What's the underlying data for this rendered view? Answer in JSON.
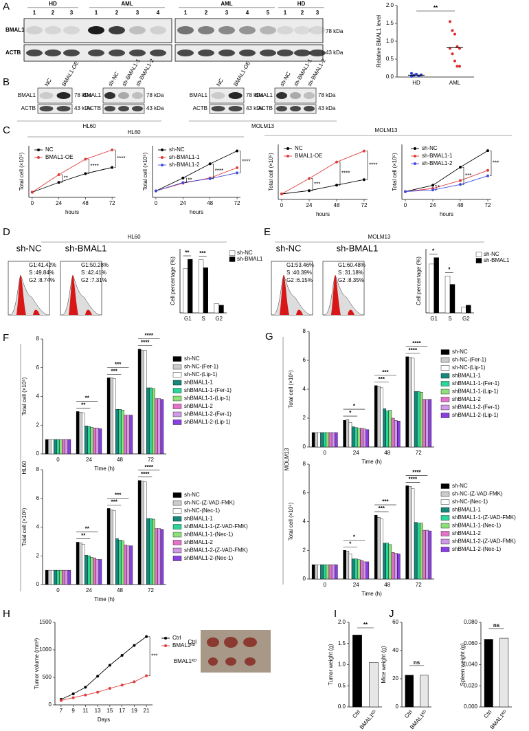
{
  "panel_labels": [
    "A",
    "B",
    "C",
    "D",
    "E",
    "F",
    "G",
    "H",
    "I",
    "J"
  ],
  "blot_A": {
    "groups": [
      "HD",
      "AML",
      "AML",
      "HD"
    ],
    "lanes": [
      [
        "1",
        "2",
        "3"
      ],
      [
        "1",
        "2",
        "3",
        "4"
      ],
      [
        "1",
        "2",
        "3",
        "4",
        "5"
      ],
      [
        "1",
        "2",
        "3"
      ]
    ],
    "rows": [
      "BMAL1",
      "ACTB"
    ],
    "sizes": [
      "78 kDa",
      "43 kDa"
    ]
  },
  "blot_B": {
    "blots": [
      {
        "lanes": [
          "NC",
          "BMAL1-OE"
        ]
      },
      {
        "lanes": [
          "sh-NC",
          "sh-BMAL1-1",
          "sh-BMAL1-2"
        ]
      },
      {
        "lanes": [
          "NC",
          "BMAL1-OE"
        ]
      },
      {
        "lanes": [
          "sh-NC",
          "sh-BMAL1-1",
          "sh-BMAL1-2"
        ]
      }
    ],
    "rows": [
      "BMAL1",
      "ACTB"
    ],
    "sizes": [
      "78 kDa",
      "43 kDa"
    ],
    "cell_lines": [
      "HL60",
      "MOLM13"
    ]
  },
  "section_labels": {
    "C": [
      "HL60",
      "MOLM13"
    ],
    "D": "HL60",
    "E": "MOLM13",
    "F": "HL60",
    "G": "MOLM13"
  },
  "flow": {
    "D": [
      {
        "title": "sh-NC",
        "stats": [
          "G1:41.42%",
          "S :49.84%",
          "G2 :8.74%"
        ]
      },
      {
        "title": "sh-BMAL1",
        "stats": [
          "G1:50.28%",
          "S :42.41%",
          "G2 :7.31%"
        ]
      }
    ],
    "E": [
      {
        "title": "sh-NC",
        "stats": [
          "G1:53.46%",
          "S :40.39%",
          "G2 :6.15%"
        ]
      },
      {
        "title": "sh-BMAL1",
        "stats": [
          "G1:60.48%",
          "S :31.18%",
          "G2 :8.35%"
        ]
      }
    ]
  },
  "photo": {
    "labels": [
      "Ctrl",
      "BMAL1ᴷᴰ"
    ]
  },
  "chart_data": [
    {
      "type": "dot",
      "ylabel": "Relative BMAL1 level",
      "categories": [
        "HD",
        "AML"
      ],
      "values": [
        [
          0.02,
          0.05,
          0.08,
          0.03,
          0.06,
          0.1
        ],
        [
          1.55,
          1.3,
          1.2,
          0.85,
          0.8,
          0.8,
          0.65,
          0.45,
          0.3,
          0.3
        ]
      ],
      "mean": [
        0.05,
        0.82
      ],
      "colors": [
        "#2b3fd1",
        "#e02a2a"
      ],
      "ylim": [
        0,
        2
      ],
      "yticks": [
        {
          "value": 0,
          "label": "0.0"
        },
        0.5,
        {
          "value": 1,
          "label": "1.0"
        },
        1.5,
        {
          "value": 2,
          "label": "2.0"
        }
      ],
      "annotations": [
        "**"
      ]
    },
    {
      "type": "line",
      "ylabel": "Total cell (×10⁵)",
      "xlabel": "hours",
      "x": [
        0,
        24,
        48,
        72
      ],
      "xlim": [
        -3,
        75
      ],
      "xticks": [
        0,
        24,
        48,
        72
      ],
      "ylim": [
        0,
        10
      ],
      "series": [
        {
          "name": "NC",
          "color": "#000000",
          "values": [
            1,
            2.9,
            4.6,
            5.8
          ]
        },
        {
          "name": "BMAL1-OE",
          "color": "#e03b3b",
          "values": [
            1,
            4.4,
            7.4,
            9.2
          ]
        }
      ],
      "annotations": [
        "**",
        "****",
        "****"
      ]
    },
    {
      "type": "line",
      "ylabel": "Total cell (×10⁵)",
      "xlabel": "hours",
      "x": [
        0,
        24,
        48,
        72
      ],
      "xlim": [
        -3,
        75
      ],
      "xticks": [
        0,
        24,
        48,
        72
      ],
      "ylim": [
        0,
        8
      ],
      "series": [
        {
          "name": "sh-NC",
          "color": "#000000",
          "values": [
            1,
            3,
            5.2,
            7.2
          ]
        },
        {
          "name": "sh-BMAL1-1",
          "color": "#e03b3b",
          "values": [
            1,
            2.2,
            3,
            4.6
          ]
        },
        {
          "name": "sh-BMAL1-2",
          "color": "#3b4ce0",
          "values": [
            1,
            2.3,
            2.9,
            3.8
          ]
        }
      ],
      "annotations": [
        "**",
        "****",
        "****"
      ]
    },
    {
      "type": "line",
      "ylabel": "Total cell (×10⁵)",
      "xlabel": "hours",
      "x": [
        0,
        24,
        48,
        72
      ],
      "xlim": [
        -3,
        75
      ],
      "xticks": [
        0,
        24,
        48,
        72
      ],
      "ylim": [
        0,
        10
      ],
      "series": [
        {
          "name": "NC",
          "color": "#000000",
          "values": [
            1,
            1.6,
            2.6,
            3.6
          ]
        },
        {
          "name": "BMAL1-OE",
          "color": "#e03b3b",
          "values": [
            1,
            3.8,
            6.8,
            8.8
          ]
        }
      ],
      "annotations": [
        "***",
        "****",
        "****"
      ]
    },
    {
      "type": "line",
      "ylabel": "Total cell (×10⁵)",
      "xlabel": "hours",
      "x": [
        0,
        24,
        48,
        72
      ],
      "xlim": [
        -3,
        75
      ],
      "xticks": [
        0,
        24,
        48,
        72
      ],
      "ylim": [
        0,
        7
      ],
      "series": [
        {
          "name": "sh-NC",
          "color": "#000000",
          "values": [
            1,
            1.8,
            4.1,
            6.2
          ]
        },
        {
          "name": "sh-BMAL1-1",
          "color": "#e03b3b",
          "values": [
            1,
            1.4,
            2.4,
            3.7
          ]
        },
        {
          "name": "sh-BMAL1-2",
          "color": "#3b4ce0",
          "values": [
            1,
            1.2,
            1.9,
            3.0
          ]
        }
      ],
      "annotations": [
        "*",
        "***",
        "***"
      ]
    },
    {
      "type": "bar",
      "ylabel": "Cell percentage (%)",
      "categories": [
        "G1",
        "S",
        "G2"
      ],
      "ylim": [
        0,
        60
      ],
      "series": [
        {
          "name": "sh-NC",
          "color": "#ffffff",
          "values": [
            41.4,
            49.8,
            8.7
          ]
        },
        {
          "name": "sh-BMAL1",
          "color": "#000000",
          "values": [
            50.3,
            42.4,
            7.3
          ]
        }
      ],
      "annotations": [
        "**",
        "***"
      ]
    },
    {
      "type": "bar",
      "ylabel": "Cell percentage (%)",
      "categories": [
        "G1",
        "S",
        "G2"
      ],
      "ylim": [
        0,
        70
      ],
      "series": [
        {
          "name": "sh-NC",
          "color": "#ffffff",
          "values": [
            53.5,
            40.4,
            6.2
          ]
        },
        {
          "name": "sh-BMAL1",
          "color": "#000000",
          "values": [
            60.5,
            31.2,
            8.4
          ]
        }
      ],
      "annotations": [
        "*",
        "*"
      ]
    },
    {
      "type": "bar",
      "ylabel": "Total cell (×10⁵)",
      "xlabel": "Time (h)",
      "categories": [
        "0",
        "24",
        "48",
        "72"
      ],
      "ylim": [
        0,
        8
      ],
      "yticks": [
        0,
        2,
        4,
        6,
        8
      ],
      "series": [
        {
          "name": "sh-NC",
          "color": "#000000",
          "values": [
            1,
            2.95,
            5.3,
            7.3
          ]
        },
        {
          "name": "sh-NC-(Fer-1)",
          "color": "#cccccc",
          "values": [
            1,
            2.9,
            5.3,
            7.2
          ]
        },
        {
          "name": "sh-NC-(Lip-1)",
          "color": "#ffffff",
          "values": [
            1,
            2.85,
            5.25,
            7.2
          ]
        },
        {
          "name": "shBMAL1-1",
          "color": "#16877a",
          "values": [
            1,
            1.95,
            3.1,
            4.6
          ]
        },
        {
          "name": "shBMAL1-1-(Fer-1)",
          "color": "#2ad49a",
          "values": [
            1,
            1.9,
            3.1,
            4.6
          ]
        },
        {
          "name": "shBMAL1-1-(Lip-1)",
          "color": "#8fe07a",
          "values": [
            1,
            1.85,
            3.05,
            4.55
          ]
        },
        {
          "name": "shBMAL1-2",
          "color": "#e472c9",
          "values": [
            1,
            1.8,
            2.7,
            3.85
          ]
        },
        {
          "name": "shBMAL1-2-(Fer-1)",
          "color": "#d19ae8",
          "values": [
            1,
            1.8,
            2.7,
            3.85
          ]
        },
        {
          "name": "shBMAL1-2-(Lip-1)",
          "color": "#8a3fe0",
          "values": [
            1,
            1.75,
            2.7,
            3.8
          ]
        }
      ],
      "annotations": [
        "**",
        "**",
        "***",
        "***",
        "****",
        "****"
      ]
    },
    {
      "type": "bar",
      "ylabel": "Total cell (×10⁵)",
      "xlabel": "Time (h)",
      "categories": [
        "0",
        "24",
        "48",
        "72"
      ],
      "ylim": [
        0,
        8
      ],
      "yticks": [
        0,
        2,
        4,
        6,
        8
      ],
      "series": [
        {
          "name": "sh-NC",
          "color": "#000000",
          "values": [
            1,
            2.95,
            5.3,
            7.25
          ]
        },
        {
          "name": "sh-NC-(Z-VAD-FMK)",
          "color": "#cccccc",
          "values": [
            1,
            2.9,
            5.2,
            7.2
          ]
        },
        {
          "name": "sh-NC-(Nec-1)",
          "color": "#ffffff",
          "values": [
            1,
            2.8,
            5.15,
            7.15
          ]
        },
        {
          "name": "shBMAL1-1",
          "color": "#16877a",
          "values": [
            1,
            2.05,
            3.2,
            4.6
          ]
        },
        {
          "name": "shBMAL1-1-(Z-VAD-FMK)",
          "color": "#2ad49a",
          "values": [
            1,
            2.0,
            3.1,
            4.6
          ]
        },
        {
          "name": "shBMAL1-1-(Nec-1)",
          "color": "#8fe07a",
          "values": [
            1,
            1.9,
            3.05,
            4.55
          ]
        },
        {
          "name": "shBMAL1-2",
          "color": "#e472c9",
          "values": [
            1,
            1.85,
            2.75,
            3.9
          ]
        },
        {
          "name": "shBMAL1-2-(Z-VAD-FMK)",
          "color": "#d19ae8",
          "values": [
            1,
            1.75,
            2.7,
            3.9
          ]
        },
        {
          "name": "shBMAL1-2-(Nec-1)",
          "color": "#8a3fe0",
          "values": [
            1,
            1.75,
            2.7,
            3.85
          ]
        }
      ],
      "annotations": [
        "**",
        "**",
        "***",
        "***",
        "****",
        "****"
      ]
    },
    {
      "type": "bar",
      "ylabel": "Total cell (×10⁵)",
      "xlabel": "Time (h)",
      "categories": [
        "0",
        "24",
        "48",
        "72"
      ],
      "ylim": [
        0,
        8
      ],
      "yticks": [
        0,
        2,
        4,
        6,
        8
      ],
      "series": [
        {
          "name": "sh-NC",
          "color": "#000000",
          "values": [
            1,
            1.85,
            4.25,
            6.25
          ]
        },
        {
          "name": "sh-NC-(Fer-1)",
          "color": "#cccccc",
          "values": [
            1,
            1.9,
            4.2,
            6.2
          ]
        },
        {
          "name": "sh-NC-(Lip-1)",
          "color": "#ffffff",
          "values": [
            1,
            1.7,
            4.1,
            6.15
          ]
        },
        {
          "name": "shBMAL1-1",
          "color": "#16877a",
          "values": [
            1,
            1.4,
            2.65,
            3.85
          ]
        },
        {
          "name": "shBMAL1-1-(Fer-1)",
          "color": "#2ad49a",
          "values": [
            1,
            1.35,
            2.5,
            3.85
          ]
        },
        {
          "name": "shBMAL1-1-(Lip-1)",
          "color": "#8fe07a",
          "values": [
            1,
            1.3,
            2.55,
            3.8
          ]
        },
        {
          "name": "shBMAL1-2",
          "color": "#e472c9",
          "values": [
            1,
            1.3,
            2.0,
            3.3
          ]
        },
        {
          "name": "shBMAL1-2-(Fer-1)",
          "color": "#d19ae8",
          "values": [
            1,
            1.25,
            1.85,
            3.3
          ]
        },
        {
          "name": "shBMAL1-2-(Lip-1)",
          "color": "#8a3fe0",
          "values": [
            1,
            1.2,
            1.8,
            3.3
          ]
        }
      ],
      "annotations": [
        "*",
        "*",
        "***",
        "***",
        "****",
        "****"
      ]
    },
    {
      "type": "bar",
      "ylabel": "Total cell (×10⁵)",
      "xlabel": "Time (h)",
      "categories": [
        "0",
        "24",
        "48",
        "72"
      ],
      "ylim": [
        0,
        8
      ],
      "yticks": [
        0,
        2,
        4,
        6,
        8
      ],
      "series": [
        {
          "name": "sh-NC",
          "color": "#000000",
          "values": [
            1,
            2.0,
            4.45,
            6.5
          ]
        },
        {
          "name": "sh-NC-(Z-VAD-FMK)",
          "color": "#cccccc",
          "values": [
            1,
            1.95,
            4.3,
            6.45
          ]
        },
        {
          "name": "sh-NC-(Nec-1)",
          "color": "#ffffff",
          "values": [
            1,
            1.75,
            4.2,
            6.3
          ]
        },
        {
          "name": "shBMAL1-1",
          "color": "#16877a",
          "values": [
            1,
            1.4,
            2.5,
            3.95
          ]
        },
        {
          "name": "shBMAL1-1-(Z-VAD-FMK)",
          "color": "#2ad49a",
          "values": [
            1,
            1.4,
            2.5,
            3.9
          ]
        },
        {
          "name": "shBMAL1-1-(Nec-1)",
          "color": "#8fe07a",
          "values": [
            1,
            1.35,
            2.4,
            3.9
          ]
        },
        {
          "name": "shBMAL1-2",
          "color": "#e472c9",
          "values": [
            1,
            1.3,
            1.85,
            3.4
          ]
        },
        {
          "name": "shBMAL1-2-(Z-VAD-FMK)",
          "color": "#d19ae8",
          "values": [
            1,
            1.2,
            1.8,
            3.4
          ]
        },
        {
          "name": "shBMAL1-2-(Nec-1)",
          "color": "#8a3fe0",
          "values": [
            1,
            1.2,
            1.75,
            3.35
          ]
        }
      ],
      "annotations": [
        "*",
        "*",
        "***",
        "***",
        "****",
        "****"
      ]
    },
    {
      "type": "line",
      "ylabel": "Tumor volume (mm³)",
      "xlabel": "Days",
      "x": [
        7,
        9,
        11,
        13,
        15,
        17,
        19,
        21
      ],
      "xlim": [
        6,
        22
      ],
      "xticks": [
        7,
        9,
        11,
        13,
        15,
        17,
        19,
        21
      ],
      "ylim": [
        0,
        1500
      ],
      "yticks": [
        0,
        500,
        1000,
        1500
      ],
      "series": [
        {
          "name": "Ctrl",
          "color": "#000000",
          "values": [
            100,
            200,
            320,
            520,
            720,
            900,
            1080,
            1240
          ]
        },
        {
          "name": "BMAL1ᴷᴰ",
          "color": "#e03b3b",
          "values": [
            80,
            130,
            180,
            230,
            300,
            360,
            420,
            530
          ]
        }
      ],
      "annotations": [
        "***"
      ]
    },
    {
      "type": "bar",
      "ylabel": "Tumor weight (g)",
      "categories": [
        "Ctrl",
        "BMAL1ᴷᴰ"
      ],
      "values": [
        1.7,
        1.05
      ],
      "colors": [
        "#000000",
        "#e6e6e6"
      ],
      "ylim": [
        0,
        2
      ],
      "yticks": [
        {
          "value": 0,
          "label": "0.0"
        },
        0.5,
        {
          "value": 1,
          "label": "1.0"
        },
        1.5,
        {
          "value": 2,
          "label": "2.0"
        }
      ],
      "annotations": [
        "**"
      ]
    },
    {
      "type": "bar",
      "ylabel": "Mice weight (g)",
      "categories": [
        "Ctrl",
        "BMAL1ᴷᴰ"
      ],
      "values": [
        22.5,
        22.5
      ],
      "colors": [
        "#000000",
        "#e6e6e6"
      ],
      "ylim": [
        0,
        60
      ],
      "yticks": [
        0,
        20,
        40,
        60
      ],
      "annotations": [
        "ns"
      ]
    },
    {
      "type": "bar",
      "ylabel": "Spleen weight (g)",
      "categories": [
        "Ctrl",
        "BMAL1ᴷᴰ"
      ],
      "values": [
        0.064,
        0.065
      ],
      "colors": [
        "#000000",
        "#e6e6e6"
      ],
      "ylim": [
        0,
        0.08
      ],
      "yticks": [
        {
          "value": 0,
          "label": "0.000"
        },
        {
          "value": 0.02,
          "label": "0.020"
        },
        {
          "value": 0.04,
          "label": "0.040"
        },
        {
          "value": 0.06,
          "label": "0.060"
        },
        {
          "value": 0.08,
          "label": "0.080"
        }
      ],
      "annotations": [
        "ns"
      ]
    }
  ]
}
